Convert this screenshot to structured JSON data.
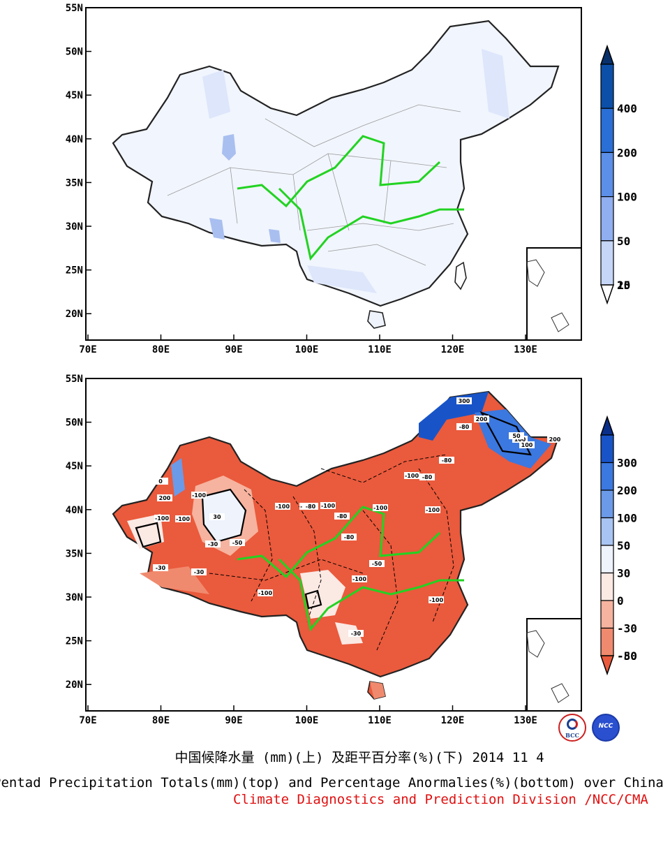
{
  "panel_top": {
    "lat_labels": [
      "55N",
      "50N",
      "45N",
      "40N",
      "35N",
      "30N",
      "25N",
      "20N"
    ],
    "lon_labels": [
      "70E",
      "80E",
      "90E",
      "100E",
      "110E",
      "120E",
      "130E"
    ],
    "colorbar_labels": [
      "400",
      "200",
      "100",
      "50",
      "25",
      "10",
      "1"
    ],
    "colorbar_colors": [
      "#08306b",
      "#0b4fa8",
      "#2a6fd6",
      "#5b8fe8",
      "#8faff0",
      "#c6d6f7",
      "#ffffff"
    ]
  },
  "panel_bottom": {
    "lat_labels": [
      "55N",
      "50N",
      "45N",
      "40N",
      "35N",
      "30N",
      "25N",
      "20N"
    ],
    "lon_labels": [
      "70E",
      "80E",
      "90E",
      "100E",
      "110E",
      "120E",
      "130E"
    ],
    "colorbar_labels": [
      "300",
      "200",
      "100",
      "50",
      "30",
      "0",
      "-30",
      "-50",
      "-80"
    ],
    "colorbar_colors": [
      "#0a2f8a",
      "#1854c8",
      "#3b78e0",
      "#6b9ae8",
      "#a8c4f2",
      "#eef3fc",
      "#fbe9e4",
      "#f6b39f",
      "#f08a6e",
      "#ea5a3c"
    ],
    "contour_labels": [
      "-100",
      "-80",
      "-100",
      "-100",
      "-80",
      "-100",
      "-50",
      "-30",
      "-100",
      "-100",
      "-80",
      "-100",
      "-100",
      "-50",
      "-30",
      "-80",
      "300",
      "200",
      "100",
      "100",
      "50",
      "200",
      "-80",
      "-80",
      "-100",
      "-100",
      "-100",
      "-100",
      "-30",
      "-30",
      "0",
      "30",
      "200"
    ]
  },
  "logos": {
    "left": "BCC",
    "right": "NCC"
  },
  "caption": {
    "chinese": "中国候降水量 (mm)(上) 及距平百分率(%)(下) 2014 11 4",
    "english": "Pentad Precipitation Totals(mm)(top) and Percentage Anormalies(%)(bottom) over China",
    "division": "Climate Diagnostics and Prediction Division /NCC/CMA"
  },
  "colors": {
    "yellow_river": "#22d322",
    "yangtze_river": "#22d322",
    "caption_division": "#e01010"
  }
}
